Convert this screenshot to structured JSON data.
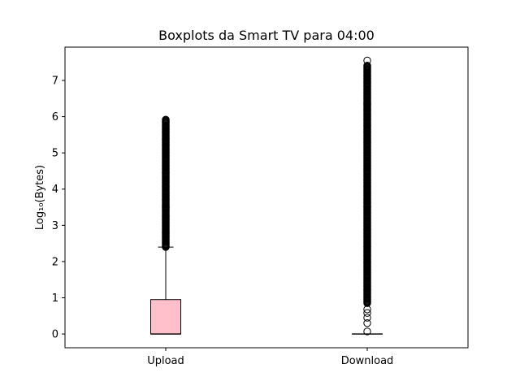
{
  "chart_data": {
    "type": "boxplot",
    "title": "Boxplots da Smart TV para 04:00",
    "xlabel": "",
    "ylabel": "Log₁₀(Bytes)",
    "ylim": [
      -0.38,
      7.92
    ],
    "yticks": [
      0,
      1,
      2,
      3,
      4,
      5,
      6,
      7
    ],
    "ytick_labels": [
      "0",
      "1",
      "2",
      "3",
      "4",
      "5",
      "6",
      "7"
    ],
    "categories": [
      "Upload",
      "Download"
    ],
    "grid": false,
    "boxes": [
      {
        "name": "Upload",
        "whisker_low": 0,
        "q1": 0,
        "median": 0,
        "q3": 0.95,
        "whisker_high": 2.4,
        "outlier_range": [
          2.4,
          5.93
        ],
        "fill": "#ffc0cb"
      },
      {
        "name": "Download",
        "whisker_low": 0,
        "q1": 0,
        "median": 0,
        "q3": 0,
        "whisker_high": 0,
        "outlier_range": [
          0.85,
          7.42
        ],
        "extra_outliers": [
          0.07,
          0.3,
          0.45,
          0.58,
          0.68,
          7.55
        ],
        "fill": "#ffc0cb"
      }
    ],
    "colors": {
      "box_edge": "#000000",
      "median": "#000000",
      "outlier_edge": "#000000"
    }
  }
}
